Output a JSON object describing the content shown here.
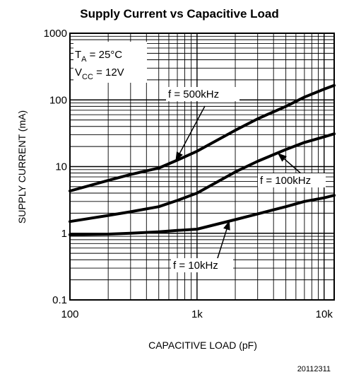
{
  "chart_data": {
    "type": "line",
    "title": "Supply Current vs Capacitive Load",
    "xlabel": "CAPACITIVE LOAD (pF)",
    "ylabel": "SUPPLY CURRENT (mA)",
    "x_scale": "log",
    "y_scale": "log",
    "xlim": [
      100,
      12000
    ],
    "ylim": [
      0.1,
      1000
    ],
    "x_ticks": [
      100,
      1000,
      10000
    ],
    "x_tick_labels": [
      "100",
      "1k",
      "10k"
    ],
    "y_ticks": [
      0.1,
      1,
      10,
      100,
      1000
    ],
    "y_tick_labels": [
      "0.1",
      "1",
      "10",
      "100",
      "1000"
    ],
    "grid": true,
    "conditions": {
      "ta_main": "T",
      "ta_sub": "A",
      "ta_rest": " = 25°C",
      "vcc_main": "V",
      "vcc_sub": "CC",
      "vcc_rest": " = 12V"
    },
    "series": [
      {
        "name": "f = 500kHz",
        "x": [
          100,
          200,
          300,
          500,
          700,
          1000,
          2000,
          3000,
          5000,
          7000,
          10000,
          12000
        ],
        "y": [
          4.3,
          6.2,
          7.6,
          9.5,
          12.5,
          17,
          35,
          52,
          80,
          110,
          145,
          165
        ]
      },
      {
        "name": "f = 100kHz",
        "x": [
          100,
          200,
          300,
          500,
          700,
          1000,
          2000,
          3000,
          5000,
          7000,
          10000,
          12000
        ],
        "y": [
          1.5,
          1.85,
          2.1,
          2.5,
          3.1,
          4,
          8.3,
          12,
          18,
          23,
          28,
          31
        ]
      },
      {
        "name": "f = 10kHz",
        "x": [
          100,
          200,
          300,
          500,
          700,
          1000,
          2000,
          3000,
          5000,
          7000,
          10000,
          12000
        ],
        "y": [
          0.95,
          0.97,
          1.0,
          1.05,
          1.1,
          1.15,
          1.6,
          1.95,
          2.5,
          3.0,
          3.4,
          3.7
        ]
      }
    ],
    "figure_code": "20112311"
  }
}
